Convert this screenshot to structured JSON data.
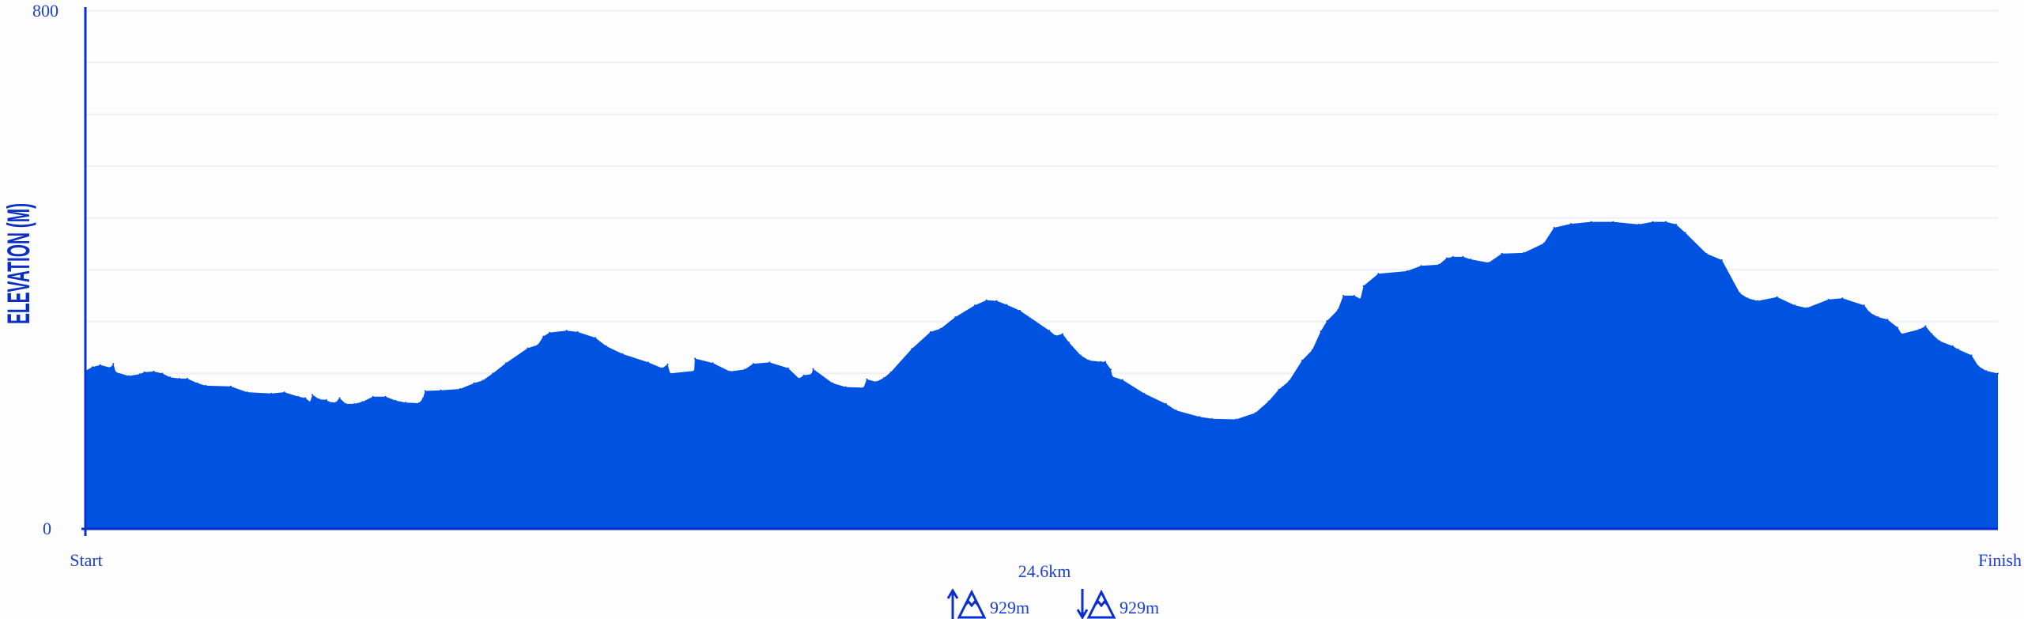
{
  "chart_data": {
    "type": "area",
    "ylabel": "ELEVATION (M)",
    "xlabel": "",
    "xlim": [
      0,
      24.6
    ],
    "ylim": [
      0,
      800
    ],
    "y_tick_labels": [
      "0",
      "800"
    ],
    "x_tick_labels": [
      "Start",
      "Finish"
    ],
    "grid": true,
    "grid_step": 80,
    "fill_color": "#0052e0",
    "axis_color": "#0b2fcc",
    "x": [
      0.0,
      0.09,
      0.19,
      0.32,
      0.36,
      0.39,
      0.56,
      0.7,
      0.76,
      0.88,
      0.99,
      1.09,
      1.21,
      1.31,
      1.44,
      1.55,
      1.87,
      2.08,
      2.39,
      2.56,
      2.74,
      2.83,
      2.89,
      2.92,
      3.01,
      3.1,
      3.13,
      3.22,
      3.27,
      3.35,
      3.46,
      3.56,
      3.7,
      3.86,
      3.99,
      4.12,
      4.29,
      4.34,
      4.37,
      4.57,
      4.82,
      5.0,
      5.11,
      5.24,
      5.41,
      5.69,
      5.82,
      5.89,
      5.97,
      6.19,
      6.33,
      6.56,
      6.7,
      6.91,
      7.24,
      7.42,
      7.49,
      7.52,
      7.83,
      7.84,
      8.07,
      8.29,
      8.48,
      8.59,
      8.8,
      9.04,
      9.18,
      9.24,
      9.34,
      9.36,
      9.61,
      9.78,
      10.01,
      10.05,
      10.17,
      10.27,
      10.36,
      10.63,
      10.87,
      11.0,
      11.19,
      11.44,
      11.59,
      11.72,
      11.85,
      12.02,
      12.4,
      12.48,
      12.57,
      12.65,
      12.8,
      12.91,
      13.06,
      13.12,
      13.19,
      13.21,
      13.34,
      13.62,
      13.9,
      14.03,
      14.33,
      14.49,
      14.8,
      15.05,
      15.22,
      15.35,
      15.48,
      15.65,
      15.78,
      15.89,
      15.97,
      16.11,
      16.18,
      16.32,
      16.4,
      16.44,
      16.63,
      17.0,
      17.18,
      17.41,
      17.51,
      17.59,
      17.72,
      17.82,
      18.05,
      18.22,
      18.5,
      18.76,
      18.89,
      19.11,
      19.37,
      19.65,
      19.98,
      20.16,
      20.33,
      20.46,
      20.58,
      20.85,
      21.05,
      21.28,
      21.38,
      21.51,
      21.76,
      21.99,
      22.14,
      22.42,
      22.6,
      22.88,
      22.95,
      23.06,
      23.18,
      23.31,
      23.36,
      23.59,
      23.67,
      23.75,
      23.85,
      24.02,
      24.09,
      24.26,
      24.35,
      24.45,
      24.6
    ],
    "y": [
      244,
      250,
      253,
      249,
      255,
      242,
      236,
      239,
      242,
      243,
      240,
      234,
      232,
      232,
      225,
      221,
      220,
      211,
      209,
      211,
      204,
      202,
      196,
      207,
      200,
      199,
      196,
      195,
      202,
      193,
      193,
      196,
      204,
      204,
      198,
      195,
      194,
      201,
      213,
      214,
      216,
      225,
      229,
      240,
      256,
      279,
      284,
      297,
      303,
      306,
      304,
      295,
      282,
      270,
      257,
      248,
      254,
      240,
      244,
      263,
      256,
      243,
      246,
      255,
      257,
      248,
      232,
      237,
      239,
      247,
      225,
      219,
      218,
      231,
      227,
      233,
      242,
      278,
      304,
      309,
      327,
      345,
      353,
      352,
      346,
      337,
      306,
      298,
      301,
      288,
      268,
      260,
      258,
      258,
      246,
      235,
      230,
      209,
      193,
      183,
      173,
      170,
      169,
      179,
      197,
      215,
      228,
      260,
      276,
      305,
      321,
      338,
      360,
      360,
      355,
      375,
      394,
      398,
      406,
      408,
      418,
      420,
      420,
      416,
      411,
      425,
      426,
      441,
      465,
      471,
      474,
      474,
      470,
      474,
      474,
      470,
      457,
      425,
      415,
      364,
      356,
      352,
      358,
      345,
      341,
      354,
      356,
      345,
      334,
      327,
      323,
      311,
      301,
      308,
      313,
      301,
      290,
      282,
      277,
      268,
      251,
      244,
      240
    ]
  },
  "summary": {
    "distance": "24.6km",
    "ascent": "929m",
    "descent": "929m",
    "ascent_icon": "arrow-up-mountain-icon",
    "descent_icon": "arrow-down-mountain-icon"
  }
}
